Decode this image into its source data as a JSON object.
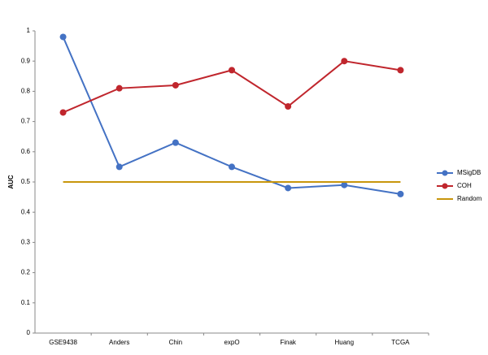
{
  "chart_data": {
    "type": "line",
    "y_label": "AUC",
    "categories": [
      "GSE9438",
      "Anders",
      "Chin",
      "expO",
      "Finak",
      "Huang",
      "TCGA"
    ],
    "series": [
      {
        "name": "MSigDB",
        "color": "#4472c4",
        "marker": true,
        "values": [
          0.98,
          0.55,
          0.63,
          0.55,
          0.48,
          0.49,
          0.46
        ]
      },
      {
        "name": "COH",
        "color": "#c0262d",
        "marker": true,
        "values": [
          0.73,
          0.81,
          0.82,
          0.87,
          0.75,
          0.9,
          0.87
        ]
      },
      {
        "name": "Random",
        "color": "#c8960c",
        "marker": false,
        "values": [
          0.5,
          0.5,
          0.5,
          0.5,
          0.5,
          0.5,
          0.5
        ]
      }
    ],
    "ylim": [
      0,
      1
    ],
    "yticks": [
      0,
      0.1,
      0.2,
      0.3,
      0.4,
      0.5,
      0.6,
      0.7,
      0.8,
      0.9,
      1
    ],
    "grid": false,
    "legend": "right"
  }
}
